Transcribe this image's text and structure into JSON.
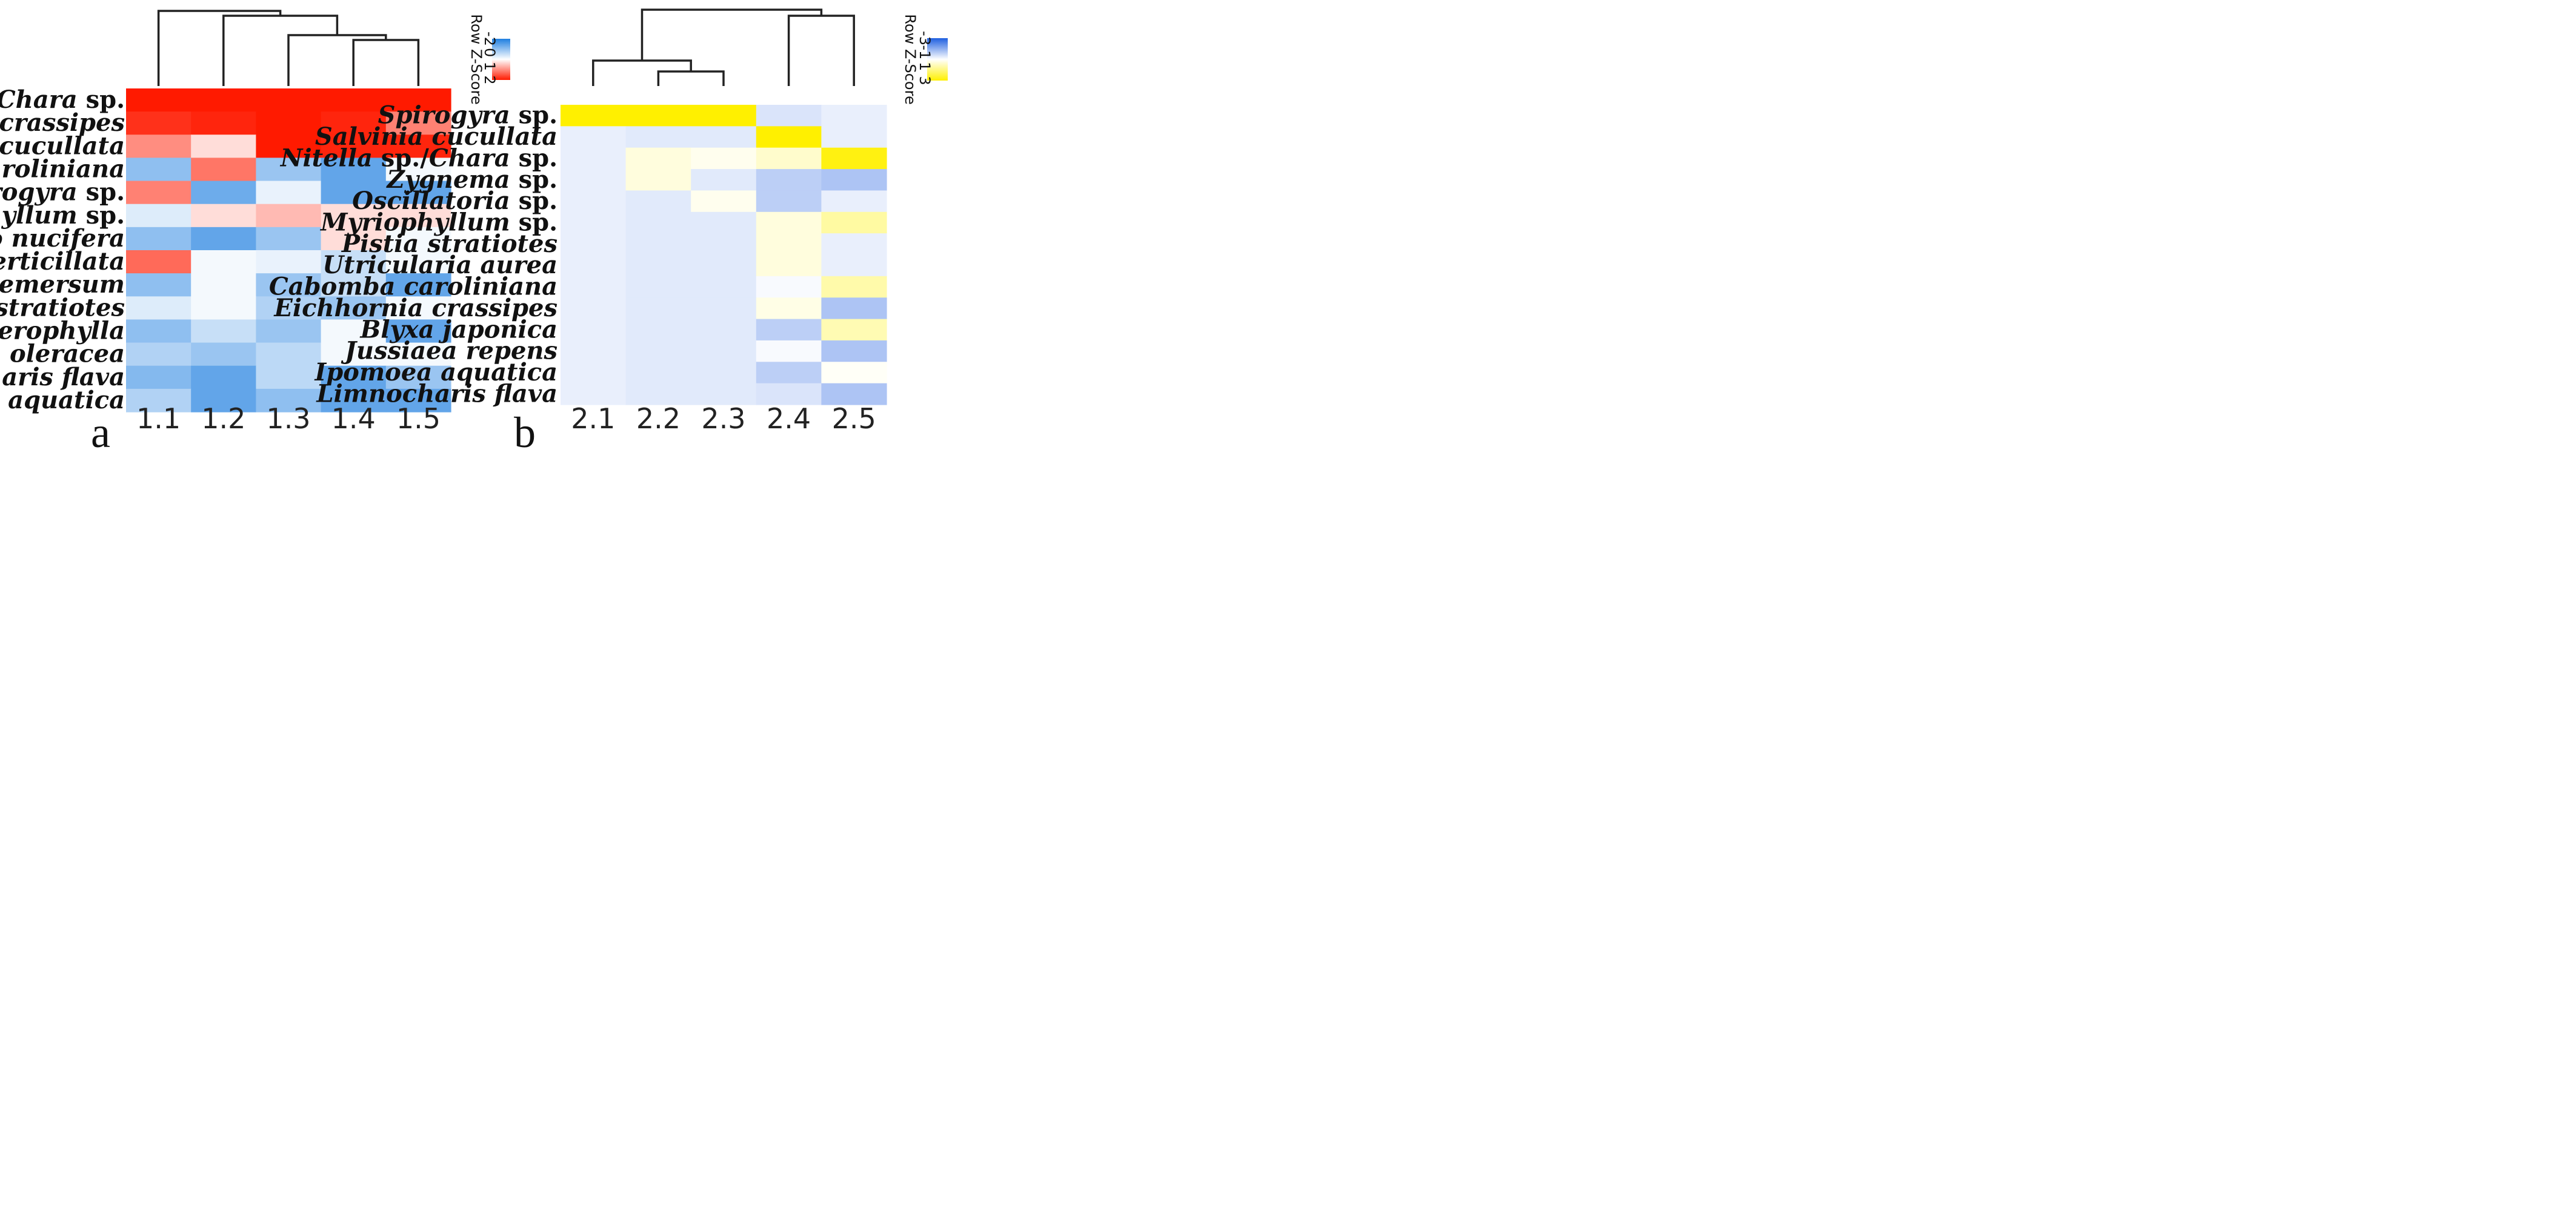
{
  "chart_data": [
    {
      "type": "heatmap",
      "panel_label": "a",
      "columns": [
        "1.1",
        "1.2",
        "1.3",
        "1.4",
        "1.5"
      ],
      "rows": [
        "Nitella sp./Chara sp.",
        "Eichhornia crassipes",
        "Salvinia cucullata",
        "Cabomba caroliniana",
        "Spirogyra sp.",
        "Myriophyllum sp.",
        "Nelumbo nucifera",
        "Hydrilla verticillata",
        "Ceratophyllum demersum",
        "Pistia stratiotes",
        "Limnophila Heterophylla",
        "Neptunia oleracea",
        "Limnocharis flava",
        "Ipomoea aquatica"
      ],
      "row_label_parts": [
        [
          {
            "t": "Nitella",
            "i": true
          },
          {
            "t": " sp./",
            "i": false
          },
          {
            "t": "Chara",
            "i": true
          },
          {
            "t": " sp.",
            "i": false
          }
        ],
        [
          {
            "t": "Eichhornia crassipes",
            "i": true
          }
        ],
        [
          {
            "t": "Salvinia cucullata",
            "i": true
          }
        ],
        [
          {
            "t": "Cabomba caroliniana",
            "i": true
          }
        ],
        [
          {
            "t": "Spirogyra",
            "i": true
          },
          {
            "t": " sp.",
            "i": false
          }
        ],
        [
          {
            "t": "Myriophyllum",
            "i": true
          },
          {
            "t": " sp.",
            "i": false
          }
        ],
        [
          {
            "t": "Nelumbo nucifera",
            "i": true
          }
        ],
        [
          {
            "t": "Hydrilla verticillata",
            "i": true
          }
        ],
        [
          {
            "t": "Ceratophyllum demersum",
            "i": true
          }
        ],
        [
          {
            "t": "Pistia stratiotes",
            "i": true
          }
        ],
        [
          {
            "t": "Limnophila Heterophylla",
            "i": true
          }
        ],
        [
          {
            "t": "Neptunia oleracea",
            "i": true
          }
        ],
        [
          {
            "t": "Limnocharis flava",
            "i": true
          }
        ],
        [
          {
            "t": "Ipomoea aquatica",
            "i": true
          }
        ]
      ],
      "values": [
        [
          2.1,
          2.5,
          2.2,
          2.2,
          2.4
        ],
        [
          1.8,
          1.9,
          2.2,
          1.9,
          1.1
        ],
        [
          1.0,
          0.3,
          2.2,
          1.9,
          1.9
        ],
        [
          -1.0,
          1.2,
          -0.9,
          -1.4,
          -0.1
        ],
        [
          1.1,
          -1.3,
          -0.2,
          -1.4,
          -1.4
        ],
        [
          -0.3,
          0.3,
          0.6,
          0.3,
          0.3
        ],
        [
          -1.0,
          -1.4,
          -0.9,
          0.3,
          -0.1
        ],
        [
          1.3,
          -0.1,
          -0.2,
          -0.5,
          -0.1
        ],
        [
          -1.0,
          -0.1,
          -0.9,
          -0.5,
          -1.4
        ],
        [
          -0.3,
          -0.1,
          -0.7,
          -0.9,
          -0.1
        ],
        [
          -1.0,
          -0.5,
          -0.9,
          -0.1,
          -1.4
        ],
        [
          -0.7,
          -0.9,
          -0.6,
          -0.1,
          -0.1
        ],
        [
          -1.1,
          -1.4,
          -0.6,
          -1.4,
          -0.9
        ],
        [
          -0.7,
          -1.4,
          -1.0,
          -1.4,
          -1.4
        ]
      ],
      "color_scale": {
        "low": "#1f7fe0",
        "mid": "#ffffff",
        "high": "#ff1a00"
      },
      "key": {
        "title": "Row Z-Score",
        "ticks": [
          "-2",
          "0",
          "1",
          "2"
        ],
        "range": [
          -2,
          2
        ]
      },
      "dendrogram": "((1.1),(1.2,(1.3,(1.4,1.5))))"
    },
    {
      "type": "heatmap",
      "panel_label": "b",
      "columns": [
        "2.1",
        "2.2",
        "2.3",
        "2.4",
        "2.5"
      ],
      "rows": [
        "Spirogyra sp.",
        "Salvinia cucullata",
        "Nitella sp./Chara sp.",
        "Zygnema sp.",
        "Oscillatoria sp.",
        "Myriophyllum sp.",
        "Pistia stratiotes",
        "Utricularia aurea",
        "Cabomba caroliniana",
        "Eichhornia crassipes",
        "Blyxa japonica",
        "Jussiaea repens",
        "Ipomoea aquatica",
        "Limnocharis flava"
      ],
      "row_label_parts": [
        [
          {
            "t": "Spirogyra",
            "i": true
          },
          {
            "t": " sp.",
            "i": false
          }
        ],
        [
          {
            "t": "Salvinia cucullata",
            "i": true
          }
        ],
        [
          {
            "t": "Nitella",
            "i": true
          },
          {
            "t": " sp./",
            "i": false
          },
          {
            "t": "Chara",
            "i": true
          },
          {
            "t": " sp.",
            "i": false
          }
        ],
        [
          {
            "t": "Zygnema",
            "i": true
          },
          {
            "t": " sp.",
            "i": false
          }
        ],
        [
          {
            "t": "Oscillatoria",
            "i": true
          },
          {
            "t": " sp.",
            "i": false
          }
        ],
        [
          {
            "t": "Myriophyllum",
            "i": true
          },
          {
            "t": " sp.",
            "i": false
          }
        ],
        [
          {
            "t": "Pistia stratiotes",
            "i": true
          }
        ],
        [
          {
            "t": "Utricularia aurea",
            "i": true
          }
        ],
        [
          {
            "t": "Cabomba caroliniana",
            "i": true
          }
        ],
        [
          {
            "t": "Eichhornia crassipes",
            "i": true
          }
        ],
        [
          {
            "t": "Blyxa japonica",
            "i": true
          }
        ],
        [
          {
            "t": "Jussiaea repens",
            "i": true
          }
        ],
        [
          {
            "t": "Ipomoea aquatica",
            "i": true
          }
        ],
        [
          {
            "t": "Limnocharis flava",
            "i": true
          }
        ]
      ],
      "values": [
        [
          3.2,
          3.2,
          3.2,
          -0.5,
          -0.3
        ],
        [
          -0.3,
          -0.4,
          -0.4,
          3.2,
          -0.3
        ],
        [
          -0.3,
          0.4,
          0.2,
          0.6,
          2.8
        ],
        [
          -0.3,
          0.4,
          -0.4,
          -0.9,
          -1.1
        ],
        [
          -0.3,
          -0.4,
          0.2,
          -0.9,
          -0.3
        ],
        [
          -0.3,
          -0.4,
          -0.4,
          0.4,
          1.1
        ],
        [
          -0.3,
          -0.4,
          -0.4,
          0.4,
          -0.3
        ],
        [
          -0.3,
          -0.4,
          -0.4,
          0.4,
          -0.3
        ],
        [
          -0.3,
          -0.4,
          -0.4,
          -0.1,
          1.0
        ],
        [
          -0.3,
          -0.4,
          -0.4,
          0.3,
          -1.1
        ],
        [
          -0.3,
          -0.4,
          -0.4,
          -0.9,
          0.9
        ],
        [
          -0.3,
          -0.4,
          -0.4,
          -0.1,
          -1.1
        ],
        [
          -0.3,
          -0.4,
          -0.4,
          -0.9,
          0.1
        ],
        [
          -0.3,
          -0.4,
          -0.4,
          -0.5,
          -1.1
        ]
      ],
      "color_scale": {
        "low": "#1f5fe0",
        "mid": "#ffffff",
        "high": "#fff000"
      },
      "key": {
        "title": "Row Z-Score",
        "ticks": [
          "-3",
          "-1",
          "1",
          "3"
        ],
        "range": [
          -3,
          3
        ]
      },
      "dendrogram": "((2.1,(2.2,2.3)),(2.4,2.5))"
    }
  ]
}
